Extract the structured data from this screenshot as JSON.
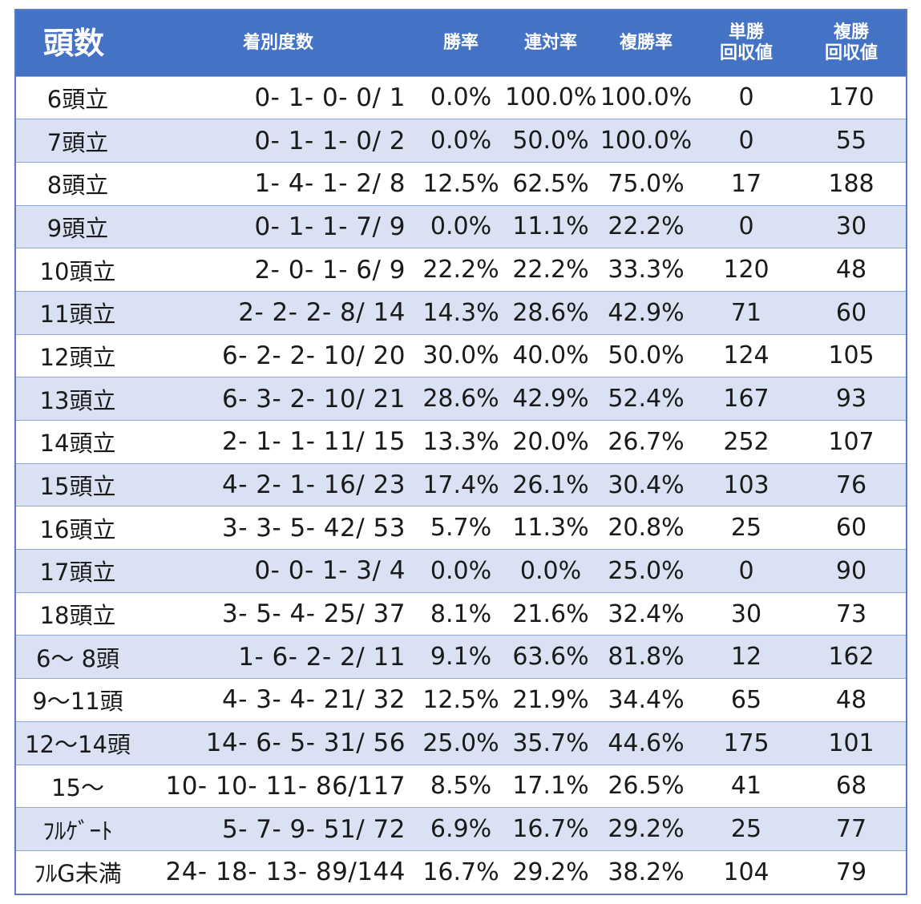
{
  "header": {
    "title": "頭数",
    "record": "着別度数",
    "win_rate": "勝率",
    "rentai_rate": "連対率",
    "fukusho_rate": "複勝率",
    "tansho_return_1": "単勝",
    "tansho_return_2": "回収値",
    "fukusho_return_1": "複勝",
    "fukusho_return_2": "回収値"
  },
  "rows": [
    {
      "label": "6頭立",
      "record": "0- 1- 0- 0/ 1",
      "win": "0.0%",
      "rentai": "100.0%",
      "fukusho": "100.0%",
      "tan": "0",
      "fuku": "170"
    },
    {
      "label": "7頭立",
      "record": "0- 1- 1- 0/ 2",
      "win": "0.0%",
      "rentai": "50.0%",
      "fukusho": "100.0%",
      "tan": "0",
      "fuku": "55"
    },
    {
      "label": "8頭立",
      "record": "1- 4- 1- 2/ 8",
      "win": "12.5%",
      "rentai": "62.5%",
      "fukusho": "75.0%",
      "tan": "17",
      "fuku": "188"
    },
    {
      "label": "9頭立",
      "record": "0- 1- 1- 7/ 9",
      "win": "0.0%",
      "rentai": "11.1%",
      "fukusho": "22.2%",
      "tan": "0",
      "fuku": "30"
    },
    {
      "label": "10頭立",
      "record": "2- 0- 1- 6/ 9",
      "win": "22.2%",
      "rentai": "22.2%",
      "fukusho": "33.3%",
      "tan": "120",
      "fuku": "48"
    },
    {
      "label": "11頭立",
      "record": "2- 2- 2- 8/ 14",
      "win": "14.3%",
      "rentai": "28.6%",
      "fukusho": "42.9%",
      "tan": "71",
      "fuku": "60"
    },
    {
      "label": "12頭立",
      "record": "6- 2- 2- 10/ 20",
      "win": "30.0%",
      "rentai": "40.0%",
      "fukusho": "50.0%",
      "tan": "124",
      "fuku": "105"
    },
    {
      "label": "13頭立",
      "record": "6- 3- 2- 10/ 21",
      "win": "28.6%",
      "rentai": "42.9%",
      "fukusho": "52.4%",
      "tan": "167",
      "fuku": "93"
    },
    {
      "label": "14頭立",
      "record": "2- 1- 1- 11/ 15",
      "win": "13.3%",
      "rentai": "20.0%",
      "fukusho": "26.7%",
      "tan": "252",
      "fuku": "107"
    },
    {
      "label": "15頭立",
      "record": "4- 2- 1- 16/ 23",
      "win": "17.4%",
      "rentai": "26.1%",
      "fukusho": "30.4%",
      "tan": "103",
      "fuku": "76"
    },
    {
      "label": "16頭立",
      "record": "3- 3- 5- 42/ 53",
      "win": "5.7%",
      "rentai": "11.3%",
      "fukusho": "20.8%",
      "tan": "25",
      "fuku": "60"
    },
    {
      "label": "17頭立",
      "record": "0- 0- 1- 3/ 4",
      "win": "0.0%",
      "rentai": "0.0%",
      "fukusho": "25.0%",
      "tan": "0",
      "fuku": "90"
    },
    {
      "label": "18頭立",
      "record": "3- 5- 4- 25/ 37",
      "win": "8.1%",
      "rentai": "21.6%",
      "fukusho": "32.4%",
      "tan": "30",
      "fuku": "73"
    },
    {
      "label": "6～ 8頭",
      "record": "1- 6- 2- 2/ 11",
      "win": "9.1%",
      "rentai": "63.6%",
      "fukusho": "81.8%",
      "tan": "12",
      "fuku": "162"
    },
    {
      "label": "9～11頭",
      "record": "4- 3- 4- 21/ 32",
      "win": "12.5%",
      "rentai": "21.9%",
      "fukusho": "34.4%",
      "tan": "65",
      "fuku": "48"
    },
    {
      "label": "12～14頭",
      "record": "14- 6- 5- 31/ 56",
      "win": "25.0%",
      "rentai": "35.7%",
      "fukusho": "44.6%",
      "tan": "175",
      "fuku": "101"
    },
    {
      "label": "15～",
      "record": "10- 10- 11- 86/117",
      "win": "8.5%",
      "rentai": "17.1%",
      "fukusho": "26.5%",
      "tan": "41",
      "fuku": "68"
    },
    {
      "label": "ﾌﾙｹﾞｰﾄ",
      "record": "5- 7- 9- 51/ 72",
      "win": "6.9%",
      "rentai": "16.7%",
      "fukusho": "29.2%",
      "tan": "25",
      "fuku": "77"
    },
    {
      "label": "ﾌﾙG未満",
      "record": "24- 18- 13- 89/144",
      "win": "16.7%",
      "rentai": "29.2%",
      "fukusho": "38.2%",
      "tan": "104",
      "fuku": "79"
    }
  ],
  "colors": {
    "header_bg": "#4472c4",
    "stripe_bg": "#d9e1f2",
    "border": "#8fa6d8"
  }
}
